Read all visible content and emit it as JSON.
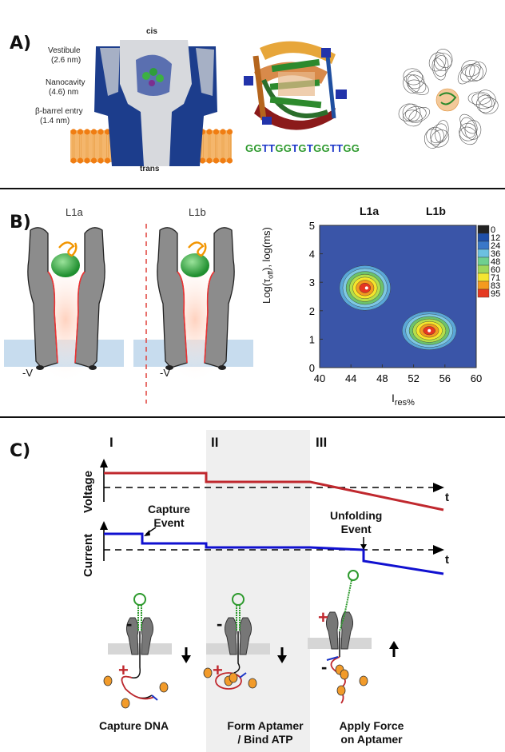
{
  "panelA": {
    "letter": "A)",
    "cis": "cis",
    "trans": "trans",
    "vestibule": "Vestibule",
    "vestibule_size": "(2.6 nm)",
    "nanocavity": "Nanocavity",
    "nanocavity_size": "(4.6) nm",
    "barrel": "β-barrel entry",
    "barrel_size": "(1.4 nm)",
    "seq_green1": "GG",
    "seq_blue1": "TT",
    "seq_green2": "GG",
    "seq_blue2": "T",
    "seq_green3": "G",
    "seq_blue3": "T",
    "seq_green4": "GG",
    "seq_blue4": "TT",
    "seq_green5": "GG"
  },
  "panelB": {
    "letter": "B)",
    "l1a": "L1a",
    "l1b": "L1b",
    "voltage": "-V",
    "chart_l1a": "L1a",
    "chart_l1b": "L1b",
    "ylabel_main": "Log(τ",
    "ylabel_sub": "off",
    "ylabel_end": "), log(ms)",
    "xlabel_main": "I",
    "xlabel_sub": "res%",
    "colorbar": [
      "0",
      "12",
      "24",
      "36",
      "48",
      "60",
      "71",
      "83",
      "95"
    ]
  },
  "chart_data": {
    "type": "heatmap",
    "x_ticks": [
      "40",
      "44",
      "48",
      "52",
      "56",
      "60"
    ],
    "y_ticks": [
      "0",
      "1",
      "2",
      "3",
      "4",
      "5"
    ],
    "xlim": [
      40,
      60
    ],
    "ylim": [
      0,
      5
    ],
    "peaks": [
      {
        "label": "L1a",
        "x": 46,
        "y": 2.8
      },
      {
        "label": "L1b",
        "x": 54,
        "y": 1.3
      }
    ]
  },
  "panelC": {
    "letter": "C)",
    "phase1": "I",
    "phase2": "II",
    "phase3": "III",
    "voltage_axis": "Voltage",
    "current_axis": "Current",
    "t1": "t",
    "t2": "t",
    "capture_line1": "Capture",
    "capture_line2": "Event",
    "unfold_line1": "Unfolding",
    "unfold_line2": "Event",
    "cap1": "Capture DNA",
    "cap2_line1": "Form Aptamer",
    "cap2_line2": "/ Bind ATP",
    "cap3_line1": "Apply Force",
    "cap3_line2": "on Aptamer",
    "minus": "-",
    "plus": "+"
  },
  "colors": {
    "voltage": "#c0282e",
    "current": "#1010d0",
    "shade": "#efefef"
  }
}
